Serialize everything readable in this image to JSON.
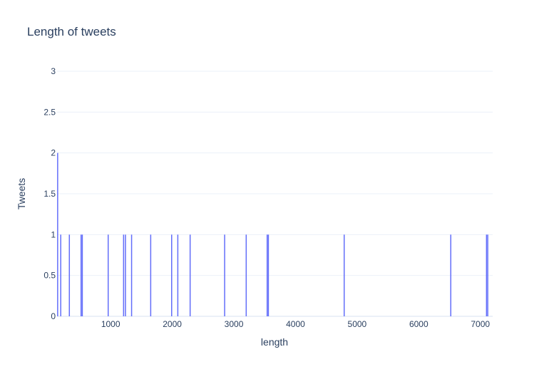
{
  "chart_data": {
    "type": "bar",
    "title": "Length of tweets",
    "xlabel": "length",
    "ylabel": "Tweets",
    "xlim": [
      130,
      7200
    ],
    "ylim": [
      0,
      3
    ],
    "x_ticks": [
      "1000",
      "2000",
      "3000",
      "4000",
      "5000",
      "6000",
      "7000"
    ],
    "y_ticks": [
      "0",
      "0.5",
      "1",
      "1.5",
      "2",
      "2.5",
      "3"
    ],
    "grid": true,
    "legend": "none",
    "bar_color": "#636efa",
    "bars": [
      {
        "x": 140,
        "y": 2
      },
      {
        "x": 190,
        "y": 1
      },
      {
        "x": 330,
        "y": 1
      },
      {
        "x": 520,
        "y": 1
      },
      {
        "x": 540,
        "y": 1
      },
      {
        "x": 960,
        "y": 1
      },
      {
        "x": 1210,
        "y": 1
      },
      {
        "x": 1240,
        "y": 1
      },
      {
        "x": 1340,
        "y": 1
      },
      {
        "x": 1650,
        "y": 1
      },
      {
        "x": 1990,
        "y": 1
      },
      {
        "x": 2090,
        "y": 1
      },
      {
        "x": 2290,
        "y": 1
      },
      {
        "x": 2850,
        "y": 1
      },
      {
        "x": 3200,
        "y": 1
      },
      {
        "x": 3540,
        "y": 1
      },
      {
        "x": 3560,
        "y": 1
      },
      {
        "x": 4790,
        "y": 1
      },
      {
        "x": 6520,
        "y": 1
      },
      {
        "x": 7100,
        "y": 1
      },
      {
        "x": 7120,
        "y": 1
      }
    ]
  }
}
